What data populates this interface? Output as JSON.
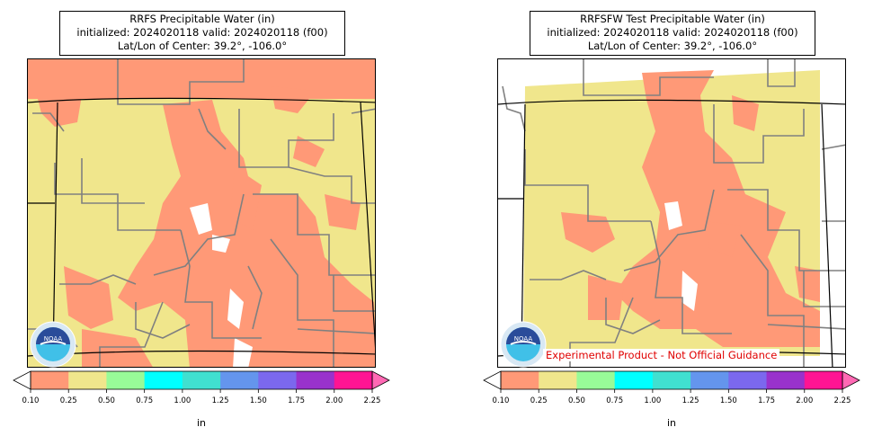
{
  "panels": [
    {
      "title": {
        "line1": "RRFS Precipitable Water (in)",
        "line2": "initialized: 2024020118 valid: 2024020118 (f00)",
        "line3": "Lat/Lon of Center: 39.2°, -106.0°"
      },
      "logo_text": "NOAA",
      "experimental_label": ""
    },
    {
      "title": {
        "line1": "RRFSFW Test Precipitable Water (in)",
        "line2": "initialized: 2024020118 valid: 2024020118 (f00)",
        "line3": "Lat/Lon of Center: 39.2°, -106.0°"
      },
      "logo_text": "NOAA",
      "experimental_label": "Experimental Product - Not Official Guidance"
    }
  ],
  "colorbar": {
    "unit": "in",
    "ticks": [
      "0.10",
      "0.25",
      "0.50",
      "0.75",
      "1.00",
      "1.25",
      "1.50",
      "1.75",
      "2.00",
      "2.25"
    ],
    "colors": [
      "#ff9977",
      "#f0e68c",
      "#98fb98",
      "#00ffff",
      "#40e0d0",
      "#6495ed",
      "#7b68ee",
      "#9932cc",
      "#ff1493"
    ],
    "under_color": "#ffffff",
    "over_color": "#ff69b4"
  },
  "palette": {
    "low_pw": "#ff9977",
    "mid_pw": "#f0e68c",
    "county_lines": "#808080",
    "state_lines": "#000000"
  }
}
